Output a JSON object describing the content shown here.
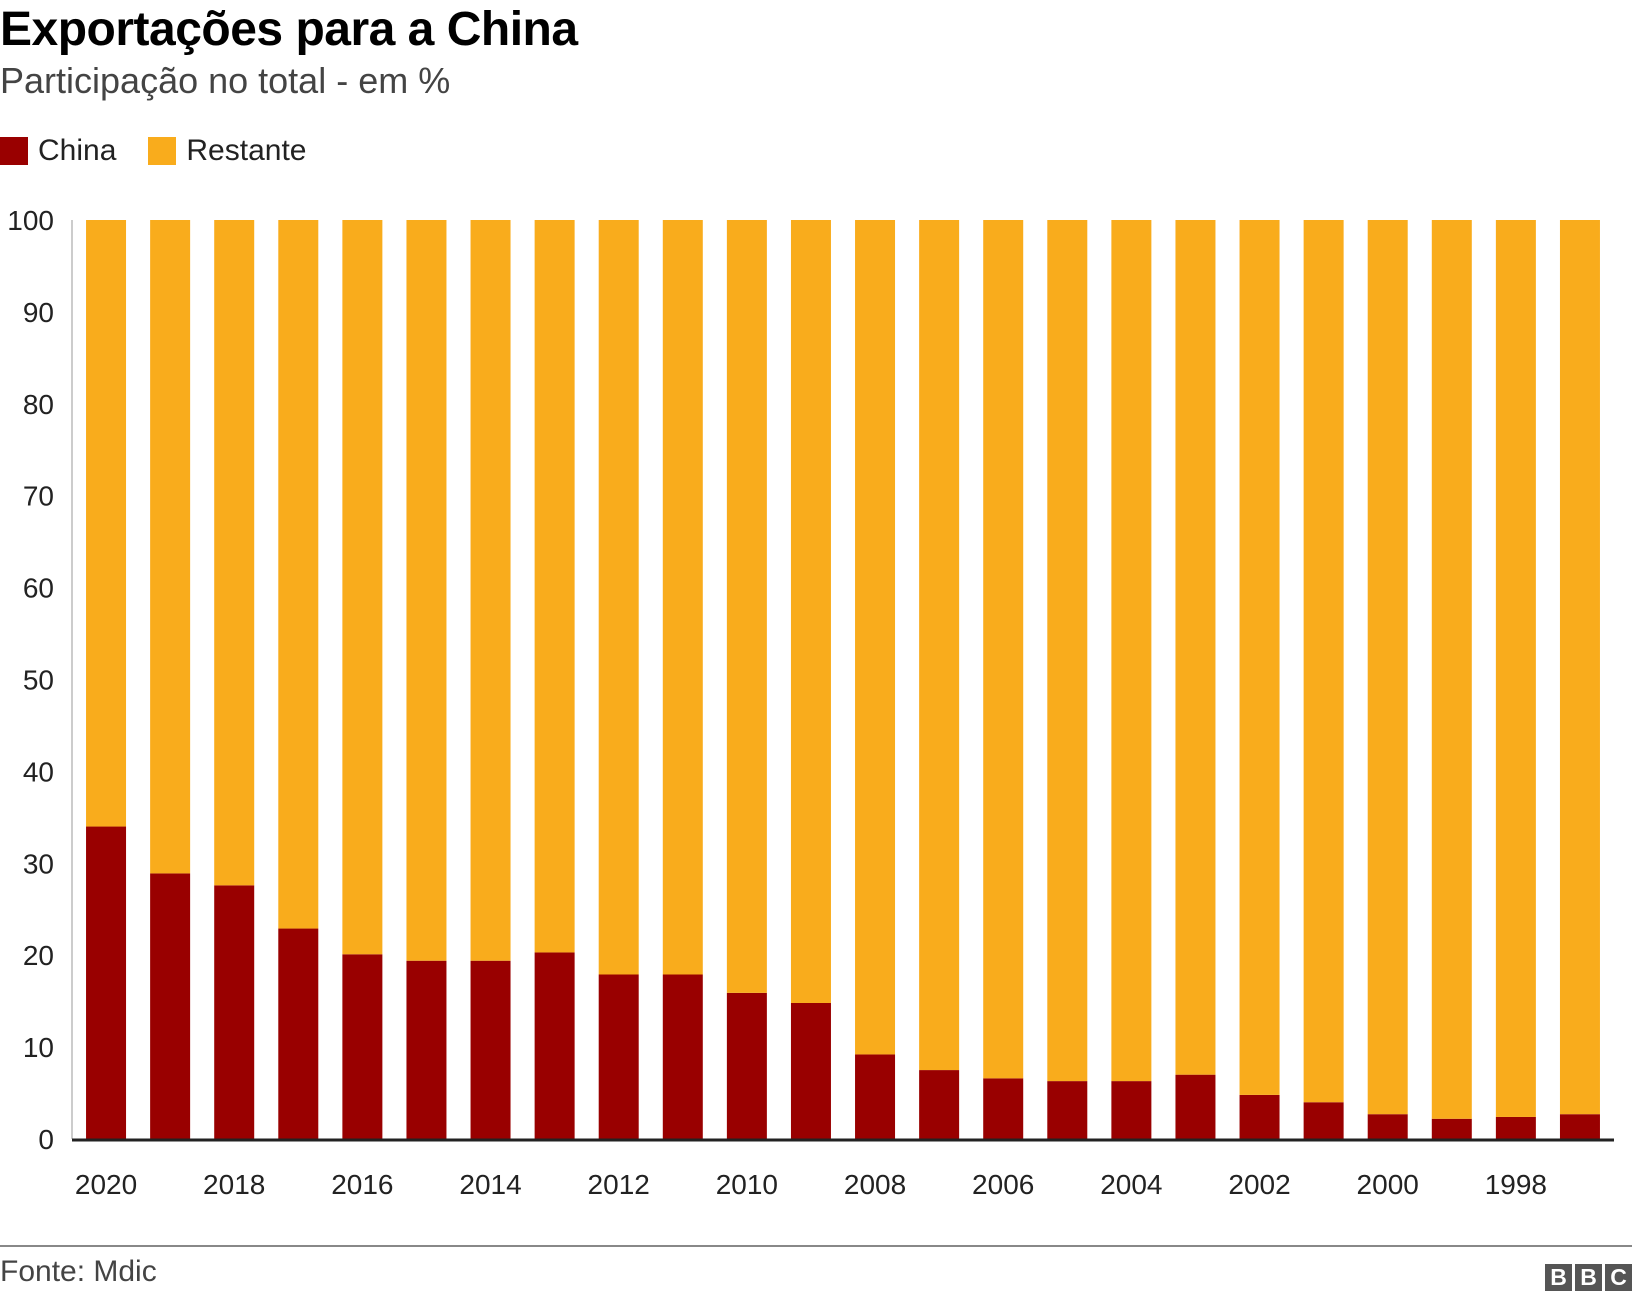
{
  "header": {
    "title": "Exportações para a China",
    "subtitle": "Participação no total - em %"
  },
  "legend": {
    "items": [
      {
        "label": "China",
        "color": "#990000"
      },
      {
        "label": "Restante",
        "color": "#F9AC1C"
      }
    ]
  },
  "footer": {
    "source": "Fonte: Mdic",
    "logo": [
      "B",
      "B",
      "C"
    ]
  },
  "chart_data": {
    "type": "bar",
    "stacked": true,
    "title": "Exportações para a China",
    "subtitle": "Participação no total - em %",
    "xlabel": "",
    "ylabel": "",
    "ylim": [
      0,
      100
    ],
    "yticks": [
      0,
      10,
      20,
      30,
      40,
      50,
      60,
      70,
      80,
      90,
      100
    ],
    "grid": false,
    "legend_position": "top-left",
    "categories": [
      2020,
      2019,
      2018,
      2017,
      2016,
      2015,
      2014,
      2013,
      2012,
      2011,
      2010,
      2009,
      2008,
      2007,
      2006,
      2005,
      2004,
      2003,
      2002,
      2001,
      2000,
      1999,
      1998,
      1997
    ],
    "xtick_labels": [
      "2020",
      "",
      "2018",
      "",
      "2016",
      "",
      "2014",
      "",
      "2012",
      "",
      "2010",
      "",
      "2008",
      "",
      "2006",
      "",
      "2004",
      "",
      "2002",
      "",
      "2000",
      "",
      "1998",
      ""
    ],
    "series": [
      {
        "name": "China",
        "color": "#990000",
        "values": [
          34.0,
          28.9,
          27.6,
          22.9,
          20.1,
          19.4,
          19.4,
          20.3,
          17.9,
          17.9,
          15.9,
          14.8,
          9.2,
          7.5,
          6.6,
          6.3,
          6.3,
          7.0,
          4.8,
          4.0,
          2.7,
          2.2,
          2.4,
          2.7
        ]
      },
      {
        "name": "Restante",
        "color": "#F9AC1C",
        "values": [
          66.0,
          71.1,
          72.4,
          77.1,
          79.9,
          80.6,
          80.6,
          79.7,
          82.1,
          82.1,
          84.1,
          85.2,
          90.8,
          92.5,
          93.4,
          93.7,
          93.7,
          93.0,
          95.2,
          96.0,
          97.3,
          97.8,
          97.6,
          97.3
        ]
      }
    ]
  }
}
